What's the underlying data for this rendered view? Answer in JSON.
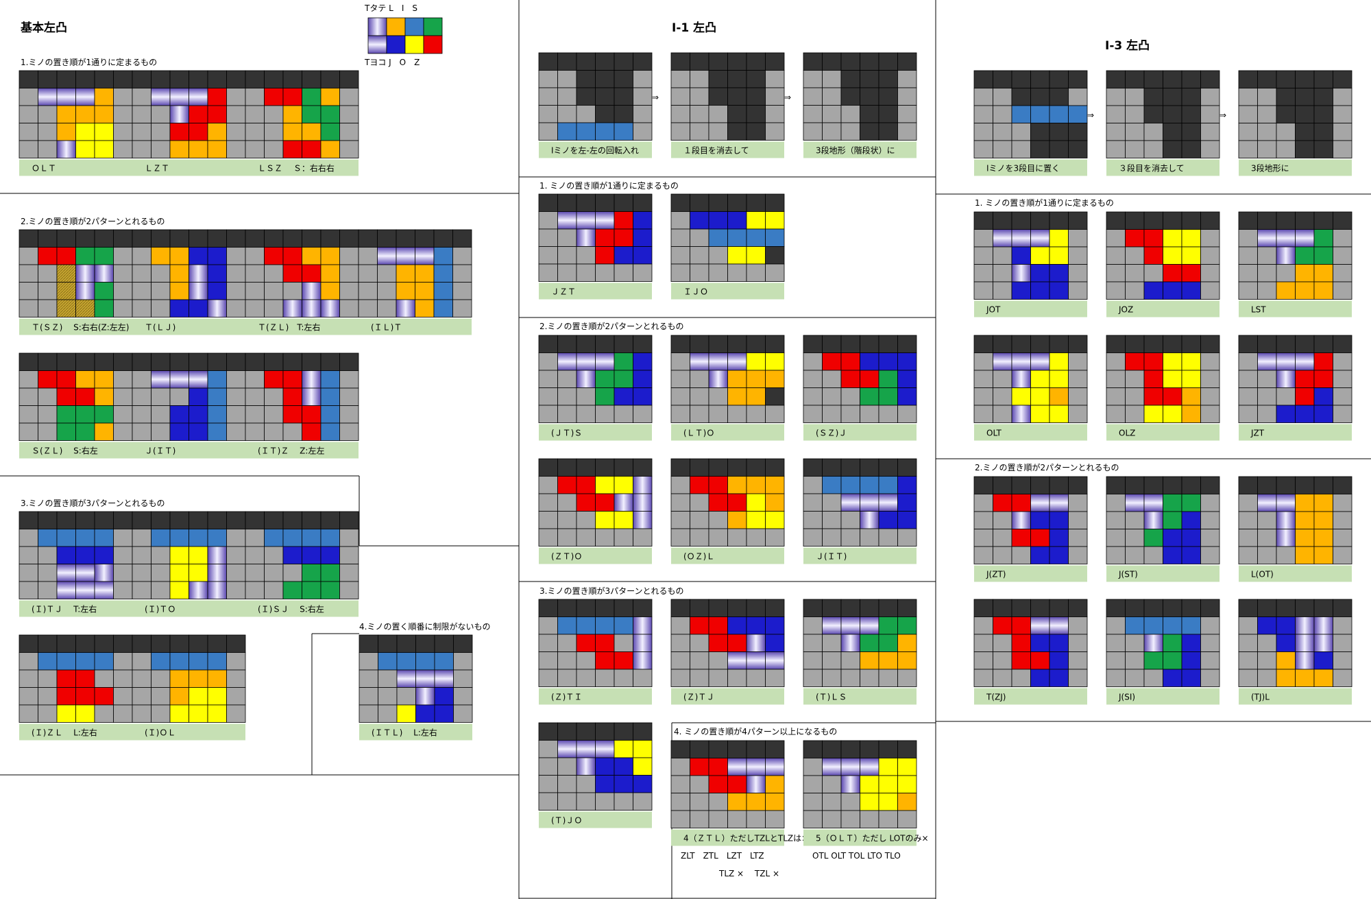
{
  "legend": {
    "top": "Tタテ L　I　S",
    "bottom": "Tヨコ J　O　Z",
    "colors": {
      "I": "#3a7cc4",
      "L": "#ffb400",
      "S": "#16a44a",
      "Z": "#f00000",
      "J": "#1c1ccc",
      "O": "#ffff00",
      "T": "#7d6ec2",
      "G": "#a6a6a6",
      "D": "#333333"
    }
  },
  "sections": {
    "basic": {
      "title": "基本左凸",
      "groups": [
        {
          "label": "1.ミノの置き順が1通りに定まるもの",
          "boards": [
            {
              "caption": "ＯＬＴ",
              "rows": [
                "DDDDDDDDDDDDDDDDD",
                "GGG..TTTTTTT.LLLLG",
                "GGG..TTTTTTT.LLLLG"
              ]
            },
            {
              "caption": "ＬＺＴ",
              "rows": []
            },
            {
              "caption": "ＬＳＺ　 Ｓ：右右右",
              "rows": []
            }
          ]
        },
        {
          "label": "2.ミノの置き順が2パターンとれるもの",
          "boards": [
            {
              "caption": "Ｔ(ＳＺ)　 S:右右(Z:左左)",
              "rows": []
            },
            {
              "caption": "Ｔ(ＬＪ)",
              "rows": []
            },
            {
              "caption": "Ｔ(ＺＬ)　T:左右",
              "rows": []
            },
            {
              "caption": "(ＩＬ)Ｔ",
              "rows": []
            },
            {
              "caption": "Ｓ(ＺＬ)　 S:右左",
              "rows": []
            },
            {
              "caption": "Ｊ(ＩＴ)",
              "rows": []
            },
            {
              "caption": "(ＩＴ)Ｚ　 Z:左左",
              "rows": []
            }
          ]
        },
        {
          "label": "3.ミノの置き順が3パターンとれるもの",
          "boards": [
            {
              "caption": "(Ｉ)ＴＪ　 T:左右",
              "rows": []
            },
            {
              "caption": "(Ｉ)ＴＯ",
              "rows": []
            },
            {
              "caption": "(Ｉ)ＳＪ　 S:右左",
              "rows": []
            },
            {
              "caption": "(Ｉ)ＺＬ　 L:左右",
              "rows": []
            },
            {
              "caption": "(Ｉ)ＯＬ",
              "rows": []
            }
          ]
        },
        {
          "label": "4.ミノの置く順番に制限がないもの",
          "boards": [
            {
              "caption": "(ＩＴＬ)　 L:左右",
              "rows": []
            }
          ]
        }
      ]
    },
    "i1": {
      "title": "I-1 左凸",
      "steps": [
        {
          "caption": "Iミノを左-左の回転入れ"
        },
        {
          "caption": "１段目を消去して"
        },
        {
          "caption": "3段地形（階段状）に"
        }
      ],
      "arrow": "⇒",
      "groups": [
        {
          "label": "1. ミノの置き順が1通りに定まるもの",
          "boards": [
            {
              "caption": "ＪＺＴ"
            },
            {
              "caption": "ＩＪＯ"
            }
          ]
        },
        {
          "label": "2.ミノの置き順が2パターンとれるもの",
          "boards": [
            {
              "caption": "(ＪＴ)Ｓ"
            },
            {
              "caption": "(ＬＴ)Ｏ"
            },
            {
              "caption": "(ＳＺ)Ｊ"
            },
            {
              "caption": "(ＺＴ)Ｏ"
            },
            {
              "caption": "(ＯＺ)Ｌ"
            },
            {
              "caption": "Ｊ(ＩＴ)"
            }
          ]
        },
        {
          "label": "3.ミノの置き順が3パターンとれるもの",
          "boards": [
            {
              "caption": "(Ｚ)ＴＩ"
            },
            {
              "caption": "(Ｚ)ＴＪ"
            },
            {
              "caption": "(Ｔ)ＬＳ"
            },
            {
              "caption": "(Ｔ)ＪＯ"
            }
          ]
        },
        {
          "label": "4. ミノの置き順が4パターン以上になるもの",
          "boards": [
            {
              "caption": "4（ＺＴＬ）ただしTZLとTLZは×"
            },
            {
              "caption": "5（ＯＬＴ）ただし LOTのみ×"
            }
          ]
        }
      ],
      "notes": {
        "zlt": "ZLT　ZTL　LZT　LTZ",
        "zlt2": "TLZ ×　 TZL ×",
        "olt": "OTL OLT TOL LTO TLO"
      }
    },
    "i3": {
      "title": "I-3 左凸",
      "steps": [
        {
          "caption": "Iミノを3段目に置く"
        },
        {
          "caption": "３段目を消去して"
        },
        {
          "caption": "3段地形に"
        }
      ],
      "arrow": "⇒",
      "groups": [
        {
          "label": "1. ミノの置き順が1通りに定まるもの",
          "boards": [
            {
              "caption": "JOT"
            },
            {
              "caption": "JOZ"
            },
            {
              "caption": "LST"
            },
            {
              "caption": "OLT"
            },
            {
              "caption": "OLZ"
            },
            {
              "caption": "JZT"
            }
          ]
        },
        {
          "label": "2.ミノの置き順が2パターンとれるもの",
          "boards": [
            {
              "caption": "J(ZT)"
            },
            {
              "caption": "J(ST)"
            },
            {
              "caption": "L(OT)"
            },
            {
              "caption": "T(ZJ)"
            },
            {
              "caption": "J(SI)"
            },
            {
              "caption": "(TJ)L"
            }
          ]
        }
      ]
    }
  }
}
